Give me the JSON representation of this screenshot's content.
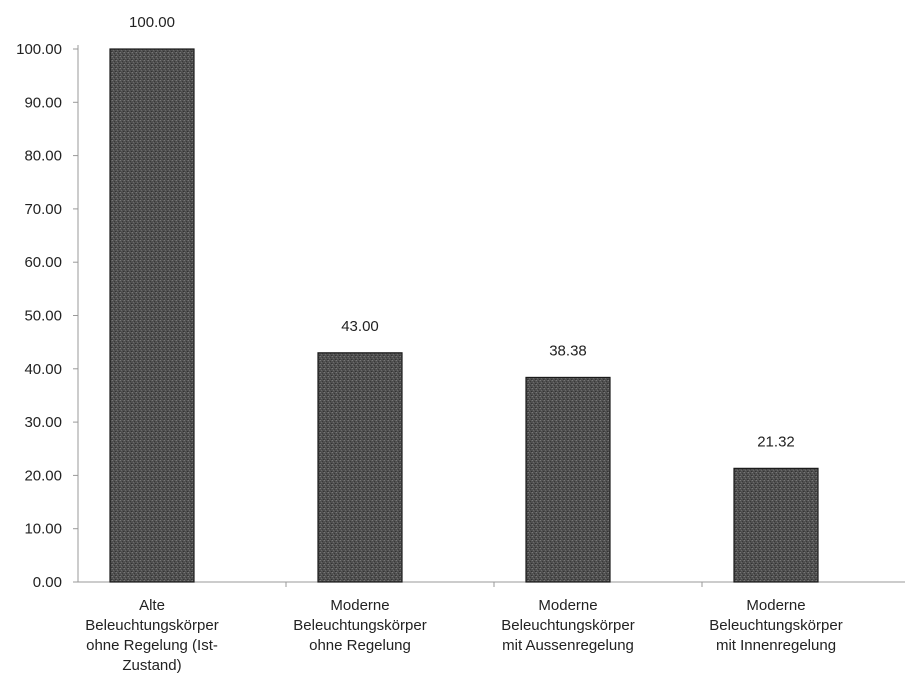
{
  "chart_data": {
    "type": "bar",
    "categories": [
      [
        "Alte",
        "Beleuchtungskörper",
        "ohne Regelung (Ist-",
        "Zustand)"
      ],
      [
        "Moderne",
        "Beleuchtungskörper",
        "ohne Regelung"
      ],
      [
        "Moderne",
        "Beleuchtungskörper",
        "mit Aussenregelung"
      ],
      [
        "Moderne",
        "Beleuchtungskörper",
        "mit Innenregelung"
      ]
    ],
    "values": [
      100.0,
      43.0,
      38.38,
      21.32
    ],
    "value_labels": [
      "100.00",
      "43.00",
      "38.38",
      "21.32"
    ],
    "y_ticks": [
      "0.00",
      "10.00",
      "20.00",
      "30.00",
      "40.00",
      "50.00",
      "60.00",
      "70.00",
      "80.00",
      "90.00",
      "100.00"
    ],
    "ylim": [
      0,
      100
    ],
    "grid": false,
    "legend": "none",
    "bar_color": "#4a4a4a",
    "title": "",
    "xlabel": "",
    "ylabel": ""
  }
}
